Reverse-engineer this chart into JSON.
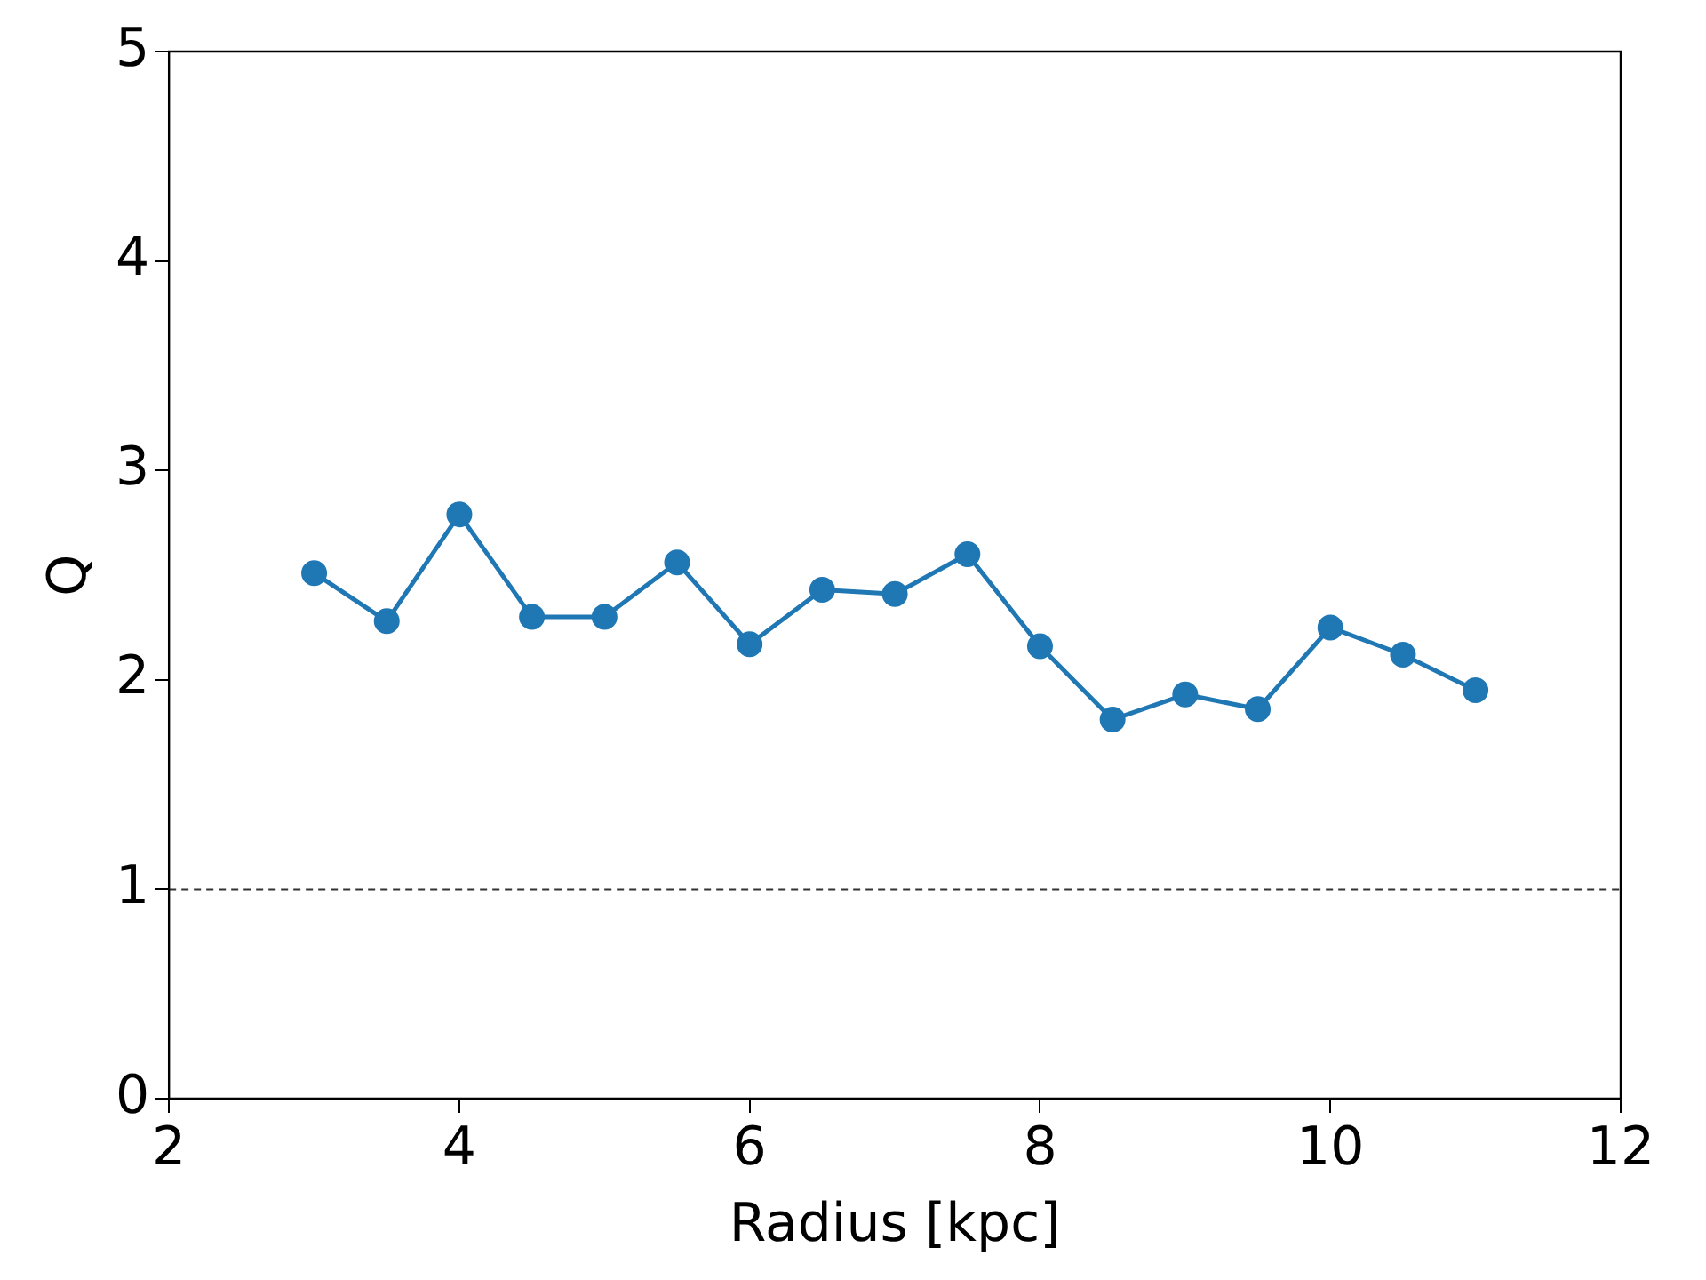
{
  "chart_data": {
    "type": "line",
    "xlabel": "Radius [kpc]",
    "ylabel": "Q",
    "x": [
      3,
      3.5,
      4,
      4.5,
      5,
      5.5,
      6,
      6.5,
      7,
      7.5,
      8,
      8.5,
      9,
      9.5,
      10,
      10.5,
      11
    ],
    "series": [
      {
        "color": "#1f77b4",
        "values": [
          2.51,
          2.28,
          2.79,
          2.3,
          2.3,
          2.56,
          2.17,
          2.43,
          2.41,
          2.6,
          2.16,
          1.81,
          1.93,
          1.86,
          2.25,
          2.12,
          1.95
        ]
      }
    ],
    "xlim": [
      2,
      12
    ],
    "xticks": [
      2,
      4,
      6,
      8,
      10,
      12
    ],
    "ylim": [
      0,
      5
    ],
    "yticks": [
      0,
      1,
      2,
      3,
      4,
      5
    ],
    "ref_lines": [
      {
        "axis": "y",
        "value": 1,
        "color": "#333333",
        "line_style": "dashed"
      }
    ],
    "marker": "circle",
    "line_style": "solid",
    "legend": false,
    "grid": false
  }
}
